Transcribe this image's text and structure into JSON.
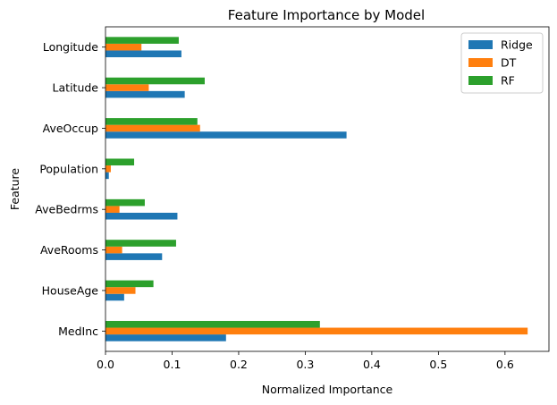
{
  "chart_data": {
    "type": "bar",
    "orientation": "horizontal",
    "title": "Feature Importance by Model",
    "xlabel": "Normalized Importance",
    "ylabel": "Feature",
    "categories": [
      "MedInc",
      "HouseAge",
      "AveRooms",
      "AveBedrms",
      "Population",
      "AveOccup",
      "Latitude",
      "Longitude"
    ],
    "series": [
      {
        "name": "Ridge",
        "color": "#1f77b4",
        "values": [
          0.181,
          0.028,
          0.085,
          0.108,
          0.005,
          0.362,
          0.119,
          0.114
        ]
      },
      {
        "name": "DT",
        "color": "#ff7f0e",
        "values": [
          0.634,
          0.045,
          0.025,
          0.021,
          0.008,
          0.142,
          0.065,
          0.054
        ]
      },
      {
        "name": "RF",
        "color": "#2ca02c",
        "values": [
          0.322,
          0.072,
          0.106,
          0.059,
          0.043,
          0.138,
          0.149,
          0.11
        ]
      }
    ],
    "xlim": [
      0,
      0.666
    ],
    "xticks": [
      0.0,
      0.1,
      0.2,
      0.3,
      0.4,
      0.5,
      0.6
    ],
    "xtick_labels": [
      "0.0",
      "0.1",
      "0.2",
      "0.3",
      "0.4",
      "0.5",
      "0.6"
    ],
    "grid": false,
    "legend_position": "top-right"
  }
}
